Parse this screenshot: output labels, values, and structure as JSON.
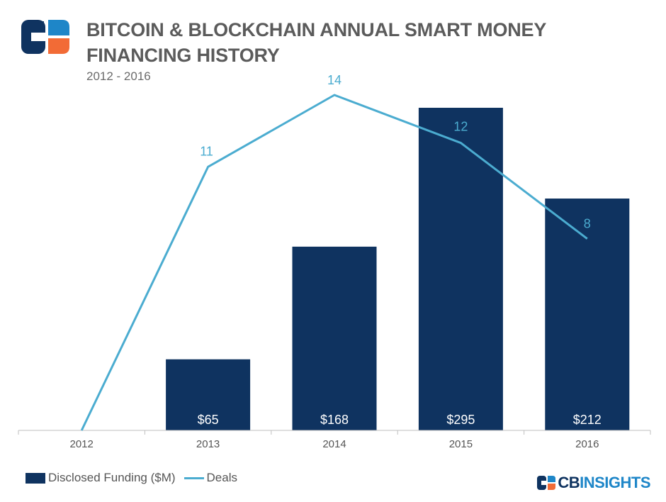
{
  "header": {
    "title": "BITCOIN & BLOCKCHAIN ANNUAL SMART MONEY FINANCING HISTORY",
    "subtitle": "2012 - 2016"
  },
  "colors": {
    "bar": "#0f3360",
    "line": "#4bacd0",
    "title": "#5b5b5b",
    "accent_orange": "#f26b36",
    "logo_navy": "#0f3360",
    "logo_blue": "#1e86c8"
  },
  "icons": {
    "logo": "cb-insights-logo-icon",
    "brand_mark": "cb-mark-icon"
  },
  "chart_data": {
    "type": "bar",
    "categories": [
      "2012",
      "2013",
      "2014",
      "2015",
      "2016"
    ],
    "series": [
      {
        "name": "Disclosed Funding ($M)",
        "type": "bar",
        "values": [
          0,
          65,
          168,
          295,
          212
        ],
        "labels": [
          "",
          "$65",
          "$168",
          "$295",
          "$212"
        ]
      },
      {
        "name": "Deals",
        "type": "line",
        "values": [
          0,
          11,
          14,
          12,
          8
        ],
        "labels": [
          "",
          "11",
          "14",
          "12",
          "8"
        ]
      }
    ],
    "title": "BITCOIN & BLOCKCHAIN ANNUAL SMART MONEY FINANCING HISTORY",
    "subtitle": "2012 - 2016",
    "bar_axis_range": [
      0,
      295
    ],
    "line_axis_range": [
      0,
      14
    ],
    "grid": false,
    "legend_position": "bottom-left"
  },
  "legend": {
    "funding_label": "Disclosed Funding ($M)",
    "deals_label": "Deals"
  },
  "brand": {
    "cb": "CB",
    "insights": "INSIGHTS"
  }
}
